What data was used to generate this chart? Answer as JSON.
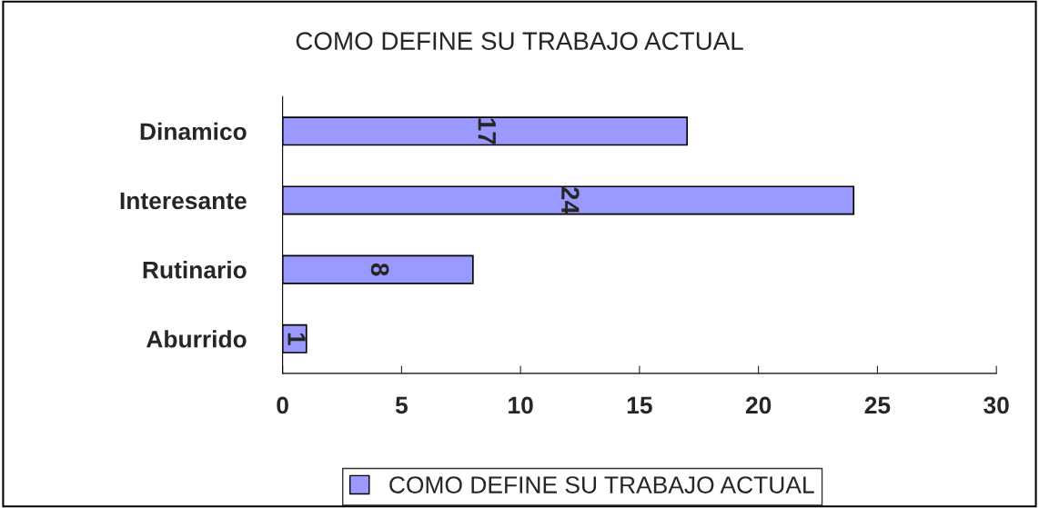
{
  "chart_data": {
    "type": "bar",
    "orientation": "horizontal",
    "title": "COMO DEFINE SU TRABAJO ACTUAL",
    "categories": [
      "Dinamico",
      "Interesante",
      "Rutinario",
      "Aburrido"
    ],
    "series": [
      {
        "name": "COMO DEFINE SU TRABAJO ACTUAL",
        "color": "#9999ff",
        "values": [
          17,
          24,
          8,
          1
        ]
      }
    ],
    "xlim": [
      0,
      30
    ],
    "xticks": [
      0,
      5,
      10,
      15,
      20,
      25,
      30
    ],
    "data_labels": true,
    "grid": false,
    "legend": "bottom"
  }
}
